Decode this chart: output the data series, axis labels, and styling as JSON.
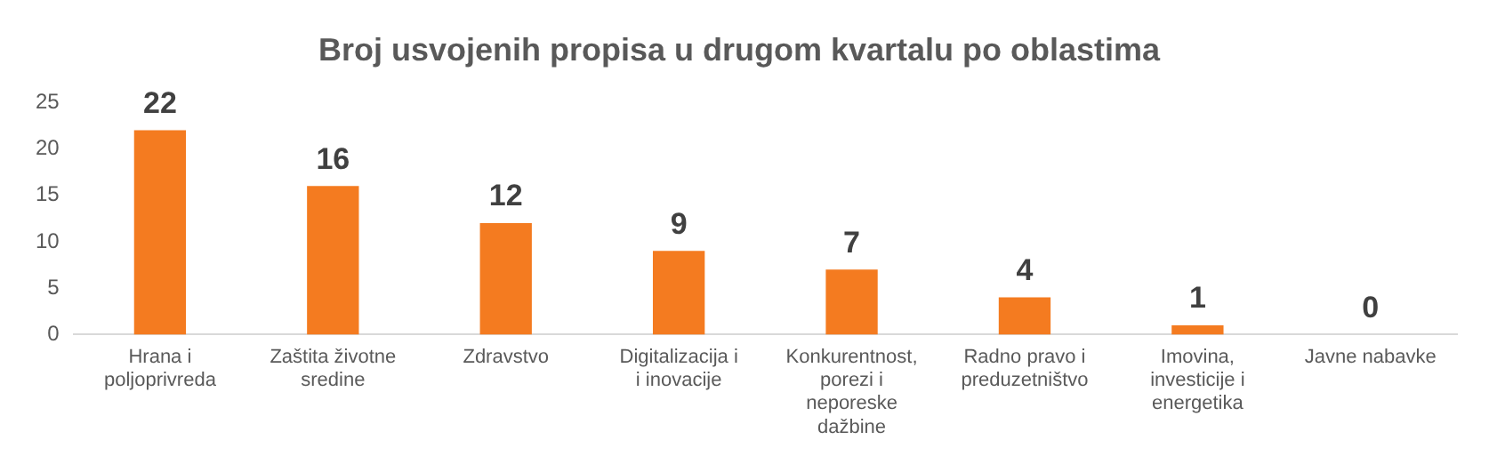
{
  "chart_data": {
    "type": "bar",
    "title": "Broj usvojenih propisa u drugom kvartalu po oblastima",
    "categories": [
      "Hrana i poljoprivreda",
      "Zaštita životne sredine",
      "Zdravstvo",
      "Digitalizacija i i inovacije",
      "Konkurentnost, porezi i neporeske dažbine",
      "Radno pravo i preduzetništvo",
      "Imovina, investicije i energetika",
      "Javne nabavke"
    ],
    "values": [
      22,
      16,
      12,
      9,
      7,
      4,
      1,
      0
    ],
    "color": "#f47b20",
    "ylim": [
      0,
      25
    ],
    "yticks": [
      0,
      5,
      10,
      15,
      20,
      25
    ],
    "grid": false,
    "legend": false,
    "data_labels": true
  }
}
